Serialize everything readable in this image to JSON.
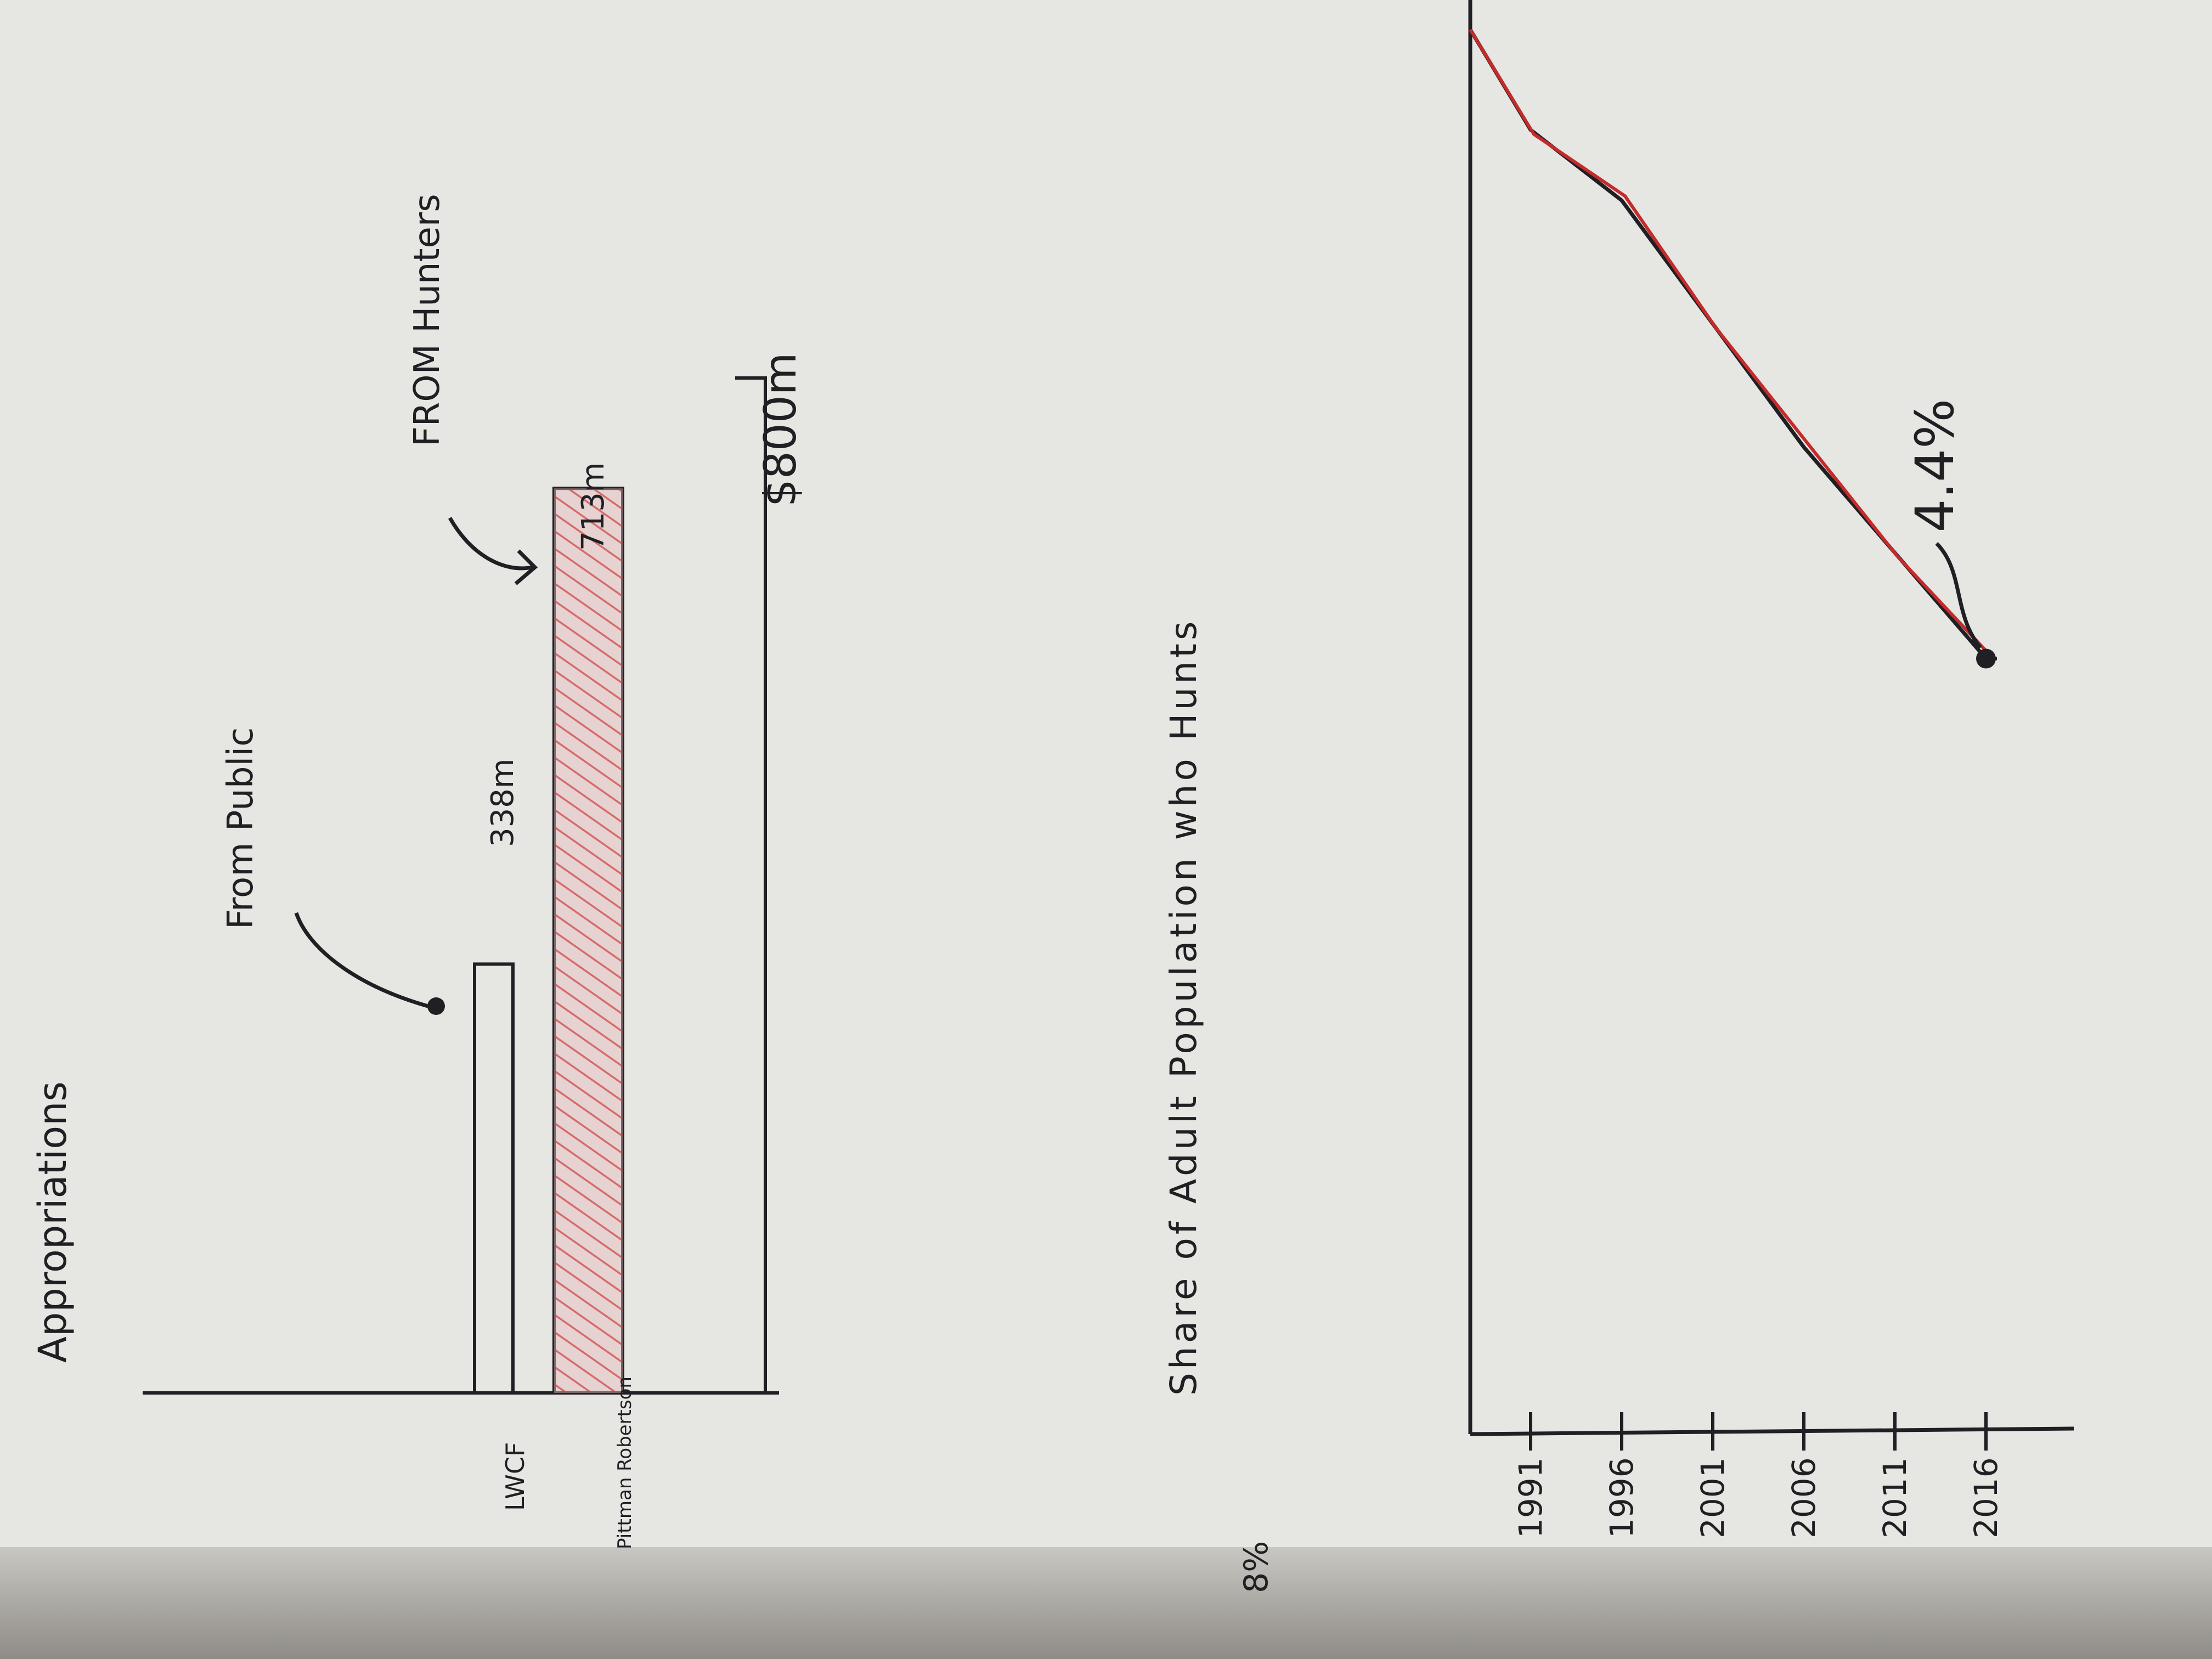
{
  "colors": {
    "paper": "#e6e6e2",
    "ink": "#1f1f24",
    "red_ink": "#c62a2a",
    "hatch_fill": "#e7bcbc"
  },
  "chart_data": [
    {
      "type": "bar",
      "title": "Appropriations",
      "categories": [
        "LWCF",
        "Pittman Robertson"
      ],
      "values": [
        338,
        713
      ],
      "unit": "$m",
      "value_labels": [
        "338m",
        "713m"
      ],
      "reference_label": "$800m",
      "reference_value": 800,
      "annotations": [
        "From Public",
        "FROM Hunters"
      ]
    },
    {
      "type": "line",
      "title": "Share of Adult Population who Hunts",
      "x": [
        1991,
        1996,
        2001,
        2006,
        2011,
        2016
      ],
      "y": [
        7.4,
        7.0,
        6.3,
        5.6,
        5.0,
        4.4
      ],
      "x_ticks": [
        "1991",
        "1996",
        "2001",
        "2006",
        "2011",
        "2016"
      ],
      "y_tick_label": "8%",
      "ylim": [
        0,
        8
      ],
      "callout": "4.4%",
      "series": [
        {
          "color": "#1f1f24"
        },
        {
          "color": "#c62a2a"
        }
      ]
    }
  ]
}
